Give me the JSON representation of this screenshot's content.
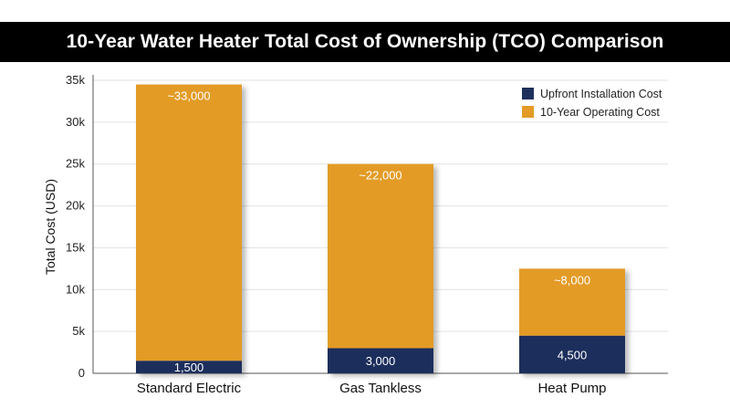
{
  "title": "10-Year Water Heater Total Cost of Ownership (TCO) Comparison",
  "colors": {
    "upfront": "#1f2f5c",
    "operating": "#e39b25",
    "title_bg": "#000000",
    "grid": "#e3e3e3"
  },
  "chart_data": {
    "type": "bar",
    "stacked": true,
    "categories": [
      "Standard Electric",
      "Gas Tankless",
      "Heat Pump"
    ],
    "series": [
      {
        "name": "Upfront Installation Cost",
        "values": [
          1500,
          3000,
          4500
        ],
        "labels": [
          "1,500",
          "3,000",
          "4,500"
        ],
        "color": "#1f2f5c"
      },
      {
        "name": "10-Year Operating Cost",
        "values": [
          33000,
          22000,
          8000
        ],
        "labels": [
          "~33,000",
          "~22,000",
          "~8,000"
        ],
        "color": "#e39b25"
      }
    ],
    "ylabel": "Total Cost (USD)",
    "ylim": [
      0,
      35000
    ],
    "yticks": [
      0,
      5000,
      10000,
      15000,
      20000,
      25000,
      30000,
      35000
    ],
    "ytick_labels": [
      "0",
      "5k",
      "10k",
      "15k",
      "20k",
      "25k",
      "30k",
      "35k"
    ],
    "grid": true,
    "legend_position": "top-right"
  }
}
